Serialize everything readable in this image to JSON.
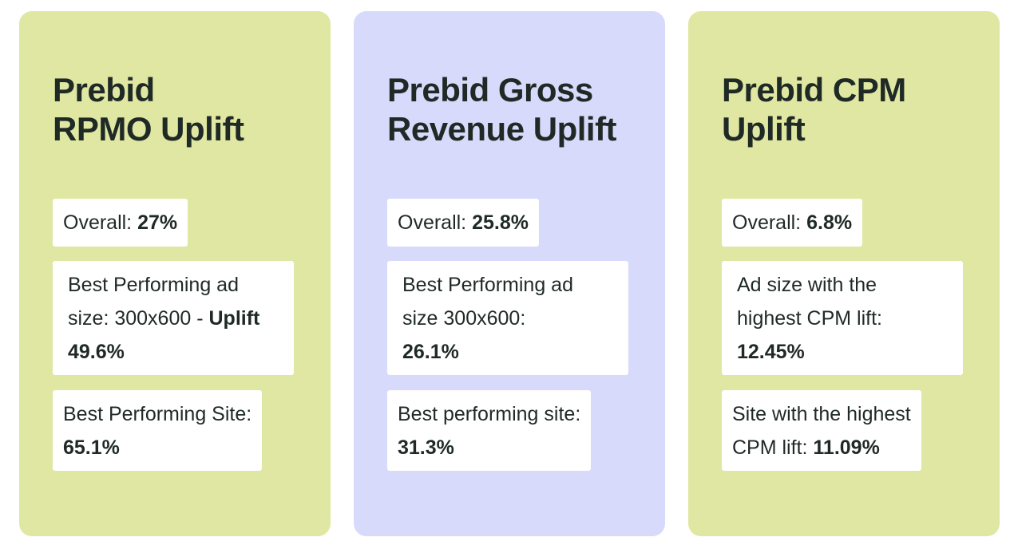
{
  "colors": {
    "card_green": "#e0e7a2",
    "card_lavender": "#d7dafa",
    "box": "#ffffff",
    "text": "#1f2a26"
  },
  "cards": [
    {
      "title_lines": [
        "Prebid",
        "RPMO Uplift"
      ],
      "overall_label": "Overall: ",
      "overall_value": "27%",
      "stat2_line1": "Best Performing ad",
      "stat2_line2": "size: 300x600 - ",
      "stat2_line2_bold": "Uplift",
      "stat2_value": "49.6%",
      "stat3_line1": "Best Performing Site:",
      "stat3_line2_prefix": "",
      "stat3_value": "65.1%"
    },
    {
      "title_lines": [
        "Prebid Gross",
        "Revenue Uplift"
      ],
      "overall_label": "Overall: ",
      "overall_value": "25.8%",
      "stat2_line1": "Best Performing ad",
      "stat2_line2": "size 300x600:",
      "stat2_line2_bold": "",
      "stat2_value": "26.1%",
      "stat3_line1": "Best performing site:",
      "stat3_line2_prefix": "",
      "stat3_value": "31.3%"
    },
    {
      "title_lines": [
        "Prebid CPM",
        "Uplift"
      ],
      "overall_label": "Overall: ",
      "overall_value": "6.8%",
      "stat2_line1": "Ad size with the",
      "stat2_line2": "highest CPM lift:",
      "stat2_line2_bold": "",
      "stat2_value": "12.45%",
      "stat3_line1": "Site with the highest",
      "stat3_line2_prefix": "CPM lift: ",
      "stat3_value": "11.09%"
    }
  ]
}
